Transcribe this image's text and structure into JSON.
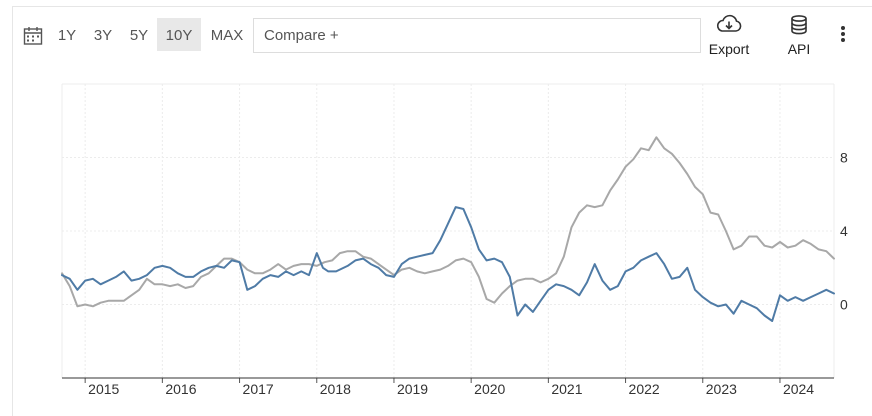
{
  "toolbar": {
    "calendar_icon": "calendar-icon",
    "ranges": [
      "1Y",
      "3Y",
      "5Y",
      "10Y",
      "MAX"
    ],
    "active_range": "10Y",
    "compare_placeholder": "Compare +",
    "export_label": "Export",
    "export_icon": "cloud-download-icon",
    "api_label": "API",
    "api_icon": "database-icon",
    "more_icon": "more-vertical-icon"
  },
  "colors": {
    "series_blue": "#4f7ba6",
    "series_gray": "#a8a8a8",
    "grid": "#ececec",
    "axis": "#333333"
  },
  "chart_data": {
    "type": "line",
    "title": "",
    "xlabel": "",
    "ylabel": "",
    "xlim": [
      2014.7,
      2024.7
    ],
    "ylim": [
      -4,
      12
    ],
    "y_axis_side": "right",
    "x_ticks": [
      "2015",
      "2016",
      "2017",
      "2018",
      "2019",
      "2020",
      "2021",
      "2022",
      "2023",
      "2024"
    ],
    "y_ticks": [
      "0",
      "4",
      "8"
    ],
    "grid": true,
    "legend": "none",
    "series": [
      {
        "color": "#4f7ba6",
        "x": [
          2014.7,
          2014.8,
          2014.9,
          2015.0,
          2015.1,
          2015.2,
          2015.3,
          2015.4,
          2015.5,
          2015.6,
          2015.7,
          2015.8,
          2015.9,
          2016.0,
          2016.1,
          2016.2,
          2016.3,
          2016.4,
          2016.5,
          2016.6,
          2016.7,
          2016.8,
          2016.9,
          2017.0,
          2017.1,
          2017.2,
          2017.3,
          2017.4,
          2017.5,
          2017.6,
          2017.7,
          2017.8,
          2017.9,
          2018.0,
          2018.08,
          2018.15,
          2018.25,
          2018.4,
          2018.5,
          2018.6,
          2018.7,
          2018.8,
          2018.9,
          2019.0,
          2019.1,
          2019.2,
          2019.3,
          2019.4,
          2019.5,
          2019.6,
          2019.7,
          2019.8,
          2019.9,
          2020.0,
          2020.1,
          2020.2,
          2020.3,
          2020.4,
          2020.5,
          2020.6,
          2020.7,
          2020.8,
          2020.9,
          2021.0,
          2021.1,
          2021.2,
          2021.3,
          2021.4,
          2021.5,
          2021.6,
          2021.7,
          2021.8,
          2021.9,
          2022.0,
          2022.1,
          2022.2,
          2022.3,
          2022.4,
          2022.5,
          2022.6,
          2022.7,
          2022.8,
          2022.9,
          2023.0,
          2023.1,
          2023.2,
          2023.3,
          2023.4,
          2023.5,
          2023.6,
          2023.7,
          2023.8,
          2023.9,
          2024.0,
          2024.1,
          2024.2,
          2024.3,
          2024.4,
          2024.5,
          2024.6,
          2024.7
        ],
        "y": [
          1.6,
          1.4,
          0.8,
          1.3,
          1.4,
          1.1,
          1.3,
          1.5,
          1.8,
          1.3,
          1.4,
          1.6,
          2.0,
          2.1,
          2.0,
          1.7,
          1.5,
          1.5,
          1.8,
          2.0,
          2.1,
          2.0,
          2.4,
          2.3,
          0.8,
          1.0,
          1.4,
          1.6,
          1.5,
          1.8,
          1.6,
          1.8,
          1.6,
          2.8,
          2.0,
          1.8,
          1.8,
          2.1,
          2.4,
          2.5,
          2.2,
          2.0,
          1.6,
          1.5,
          2.2,
          2.5,
          2.6,
          2.7,
          2.8,
          3.5,
          4.4,
          5.3,
          5.2,
          4.2,
          3.0,
          2.4,
          2.5,
          2.3,
          1.5,
          -0.6,
          0.0,
          -0.4,
          0.2,
          0.8,
          1.1,
          1.0,
          0.8,
          0.5,
          1.2,
          2.2,
          1.3,
          0.8,
          1.0,
          1.8,
          2.0,
          2.4,
          2.6,
          2.8,
          2.2,
          1.4,
          1.5,
          2.0,
          0.8,
          0.4,
          0.1,
          -0.1,
          0.0,
          -0.5,
          0.2,
          0.0,
          -0.2,
          -0.6,
          -0.9,
          0.5,
          0.2,
          0.4,
          0.2,
          0.4,
          0.6,
          0.8,
          0.6
        ]
      },
      {
        "color": "#a8a8a8",
        "x": [
          2014.7,
          2014.8,
          2014.9,
          2015.0,
          2015.1,
          2015.2,
          2015.3,
          2015.4,
          2015.5,
          2015.6,
          2015.7,
          2015.8,
          2015.9,
          2016.0,
          2016.1,
          2016.2,
          2016.3,
          2016.4,
          2016.5,
          2016.6,
          2016.7,
          2016.8,
          2016.9,
          2017.0,
          2017.1,
          2017.2,
          2017.3,
          2017.4,
          2017.5,
          2017.6,
          2017.7,
          2017.8,
          2017.9,
          2018.0,
          2018.1,
          2018.2,
          2018.3,
          2018.4,
          2018.5,
          2018.6,
          2018.7,
          2018.8,
          2018.9,
          2019.0,
          2019.1,
          2019.2,
          2019.3,
          2019.4,
          2019.5,
          2019.6,
          2019.7,
          2019.8,
          2019.9,
          2020.0,
          2020.1,
          2020.2,
          2020.3,
          2020.4,
          2020.5,
          2020.6,
          2020.7,
          2020.8,
          2020.9,
          2021.0,
          2021.1,
          2021.2,
          2021.3,
          2021.4,
          2021.5,
          2021.6,
          2021.7,
          2021.8,
          2021.9,
          2022.0,
          2022.1,
          2022.2,
          2022.3,
          2022.4,
          2022.5,
          2022.6,
          2022.7,
          2022.8,
          2022.9,
          2023.0,
          2023.1,
          2023.2,
          2023.3,
          2023.4,
          2023.5,
          2023.6,
          2023.7,
          2023.8,
          2023.9,
          2024.0,
          2024.1,
          2024.2,
          2024.3,
          2024.4,
          2024.5,
          2024.6,
          2024.7
        ],
        "y": [
          1.7,
          1.0,
          -0.1,
          0.0,
          -0.1,
          0.1,
          0.2,
          0.2,
          0.2,
          0.5,
          0.8,
          1.4,
          1.1,
          1.1,
          1.0,
          1.1,
          0.9,
          1.0,
          1.5,
          1.7,
          2.1,
          2.5,
          2.5,
          2.3,
          1.9,
          1.7,
          1.7,
          1.9,
          2.2,
          1.9,
          2.1,
          2.2,
          2.2,
          2.1,
          2.3,
          2.4,
          2.8,
          2.9,
          2.9,
          2.6,
          2.5,
          2.2,
          1.9,
          1.6,
          1.9,
          2.0,
          1.8,
          1.7,
          1.8,
          1.9,
          2.1,
          2.4,
          2.5,
          2.3,
          1.5,
          0.3,
          0.1,
          0.6,
          1.0,
          1.3,
          1.4,
          1.4,
          1.2,
          1.4,
          1.7,
          2.6,
          4.2,
          5.0,
          5.4,
          5.3,
          5.4,
          6.2,
          6.8,
          7.5,
          7.9,
          8.5,
          8.4,
          9.1,
          8.5,
          8.2,
          7.7,
          7.1,
          6.4,
          6.0,
          5.0,
          4.9,
          4.0,
          3.0,
          3.2,
          3.7,
          3.7,
          3.2,
          3.1,
          3.4,
          3.1,
          3.2,
          3.5,
          3.3,
          3.0,
          2.9,
          2.5
        ]
      }
    ]
  }
}
